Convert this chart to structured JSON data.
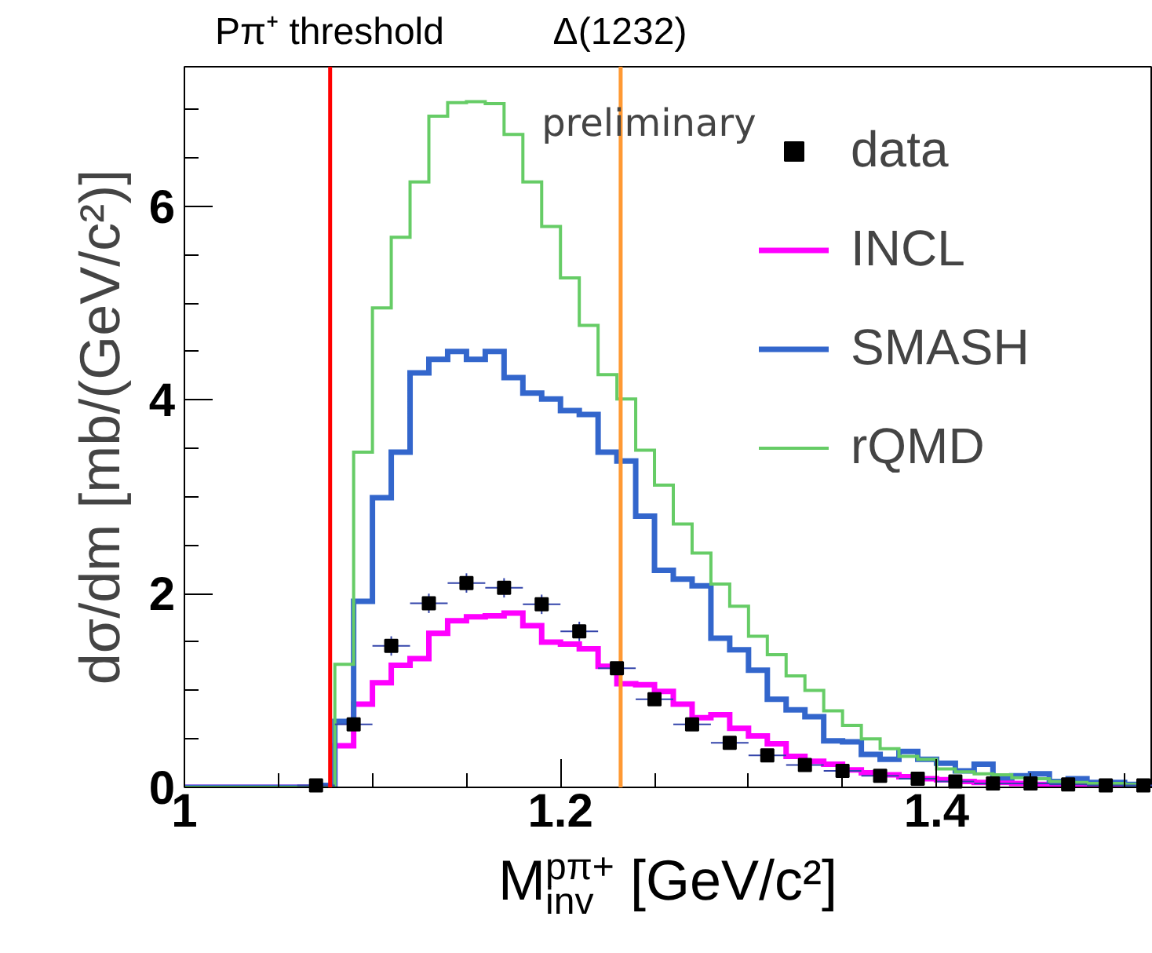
{
  "chart_data": {
    "type": "histogram",
    "xlabel": "M$_{inv}$$^{pπ+}$ [GeV/c²]",
    "ylabel": "dσ/dm [mb/(GeV/c²)]",
    "bins": [
      1.0,
      1.01,
      1.02,
      1.03,
      1.04,
      1.05,
      1.06,
      1.07,
      1.08,
      1.09,
      1.1,
      1.11,
      1.12,
      1.13,
      1.14,
      1.15,
      1.16,
      1.17,
      1.18,
      1.19,
      1.2,
      1.21,
      1.22,
      1.23,
      1.24,
      1.25,
      1.26,
      1.27,
      1.28,
      1.29,
      1.3,
      1.31,
      1.32,
      1.33,
      1.34,
      1.35,
      1.36,
      1.37,
      1.38,
      1.39,
      1.4,
      1.41,
      1.42,
      1.43,
      1.44,
      1.45,
      1.46,
      1.47,
      1.48,
      1.49,
      1.5,
      1.51
    ],
    "series": [
      {
        "name": "data",
        "type": "scatter",
        "color": "#000000",
        "x": [
          1.07,
          1.09,
          1.11,
          1.13,
          1.15,
          1.17,
          1.19,
          1.21,
          1.23,
          1.25,
          1.27,
          1.29,
          1.31,
          1.33,
          1.35,
          1.37,
          1.39,
          1.41,
          1.43,
          1.45,
          1.47,
          1.49,
          1.51
        ],
        "values": [
          0.02,
          0.65,
          1.46,
          1.9,
          2.11,
          2.06,
          1.89,
          1.61,
          1.23,
          0.91,
          0.65,
          0.46,
          0.33,
          0.23,
          0.17,
          0.12,
          0.09,
          0.06,
          0.04,
          0.04,
          0.03,
          0.02,
          0.02
        ],
        "errors": [
          null,
          null,
          0.1,
          0.1,
          0.1,
          0.1,
          0.1,
          0.1,
          null,
          null,
          null,
          null,
          null,
          null,
          null,
          null,
          null,
          null,
          null,
          null,
          null,
          null,
          null
        ],
        "xerrors": [
          0.01,
          0.01,
          0.01,
          0.01,
          0.01,
          0.01,
          0.01,
          0.01,
          0.01,
          0.01,
          0.01,
          0.01,
          0.01,
          0.01,
          0.01,
          0.01,
          0.01,
          0.01,
          0.01,
          0.01,
          0.01,
          0.01,
          0.01
        ],
        "marker": "square"
      },
      {
        "name": "INCL",
        "color": "#ff00ff",
        "values": [
          0,
          0,
          0,
          0,
          0,
          0,
          0,
          0,
          0.43,
          0.86,
          1.08,
          1.26,
          1.33,
          1.59,
          1.72,
          1.76,
          1.77,
          1.8,
          1.67,
          1.5,
          1.48,
          1.43,
          1.25,
          1.07,
          1.06,
          0.99,
          0.86,
          0.72,
          0.75,
          0.61,
          0.53,
          0.45,
          0.32,
          0.27,
          0.24,
          0.18,
          0.15,
          0.13,
          0.11,
          0.09,
          0.08,
          0.06,
          0.05,
          0.05,
          0.04,
          0.03,
          0.03,
          0.03,
          0.02,
          0.02,
          0.02
        ]
      },
      {
        "name": "SMASH",
        "color": "#3366cc",
        "values": [
          0,
          0,
          0,
          0,
          0,
          0,
          0,
          0.02,
          0.68,
          1.92,
          2.99,
          3.46,
          4.28,
          4.42,
          4.5,
          4.42,
          4.5,
          4.23,
          4.07,
          4.01,
          3.89,
          3.85,
          3.46,
          3.37,
          2.8,
          2.24,
          2.15,
          2.08,
          1.54,
          1.42,
          1.21,
          0.91,
          0.8,
          0.73,
          0.48,
          0.47,
          0.34,
          0.29,
          0.37,
          0.29,
          0.25,
          0.17,
          0.24,
          0.1,
          0.12,
          0.14,
          0.06,
          0.09,
          0.05,
          0.05,
          0.03
        ]
      },
      {
        "name": "rQMD",
        "color": "#66cc66",
        "values": [
          0,
          0,
          0,
          0,
          0,
          0,
          0,
          0,
          1.27,
          3.46,
          4.95,
          5.68,
          6.25,
          6.93,
          7.07,
          7.08,
          7.06,
          6.74,
          6.25,
          5.79,
          5.26,
          4.77,
          4.26,
          4.01,
          3.48,
          3.12,
          2.72,
          2.42,
          2.1,
          1.87,
          1.56,
          1.37,
          1.15,
          1.0,
          0.79,
          0.64,
          0.5,
          0.4,
          0.32,
          0.29,
          0.19,
          0.16,
          0.14,
          0.13,
          0.1,
          0.09,
          0.06,
          0.05,
          0.04,
          0.04,
          0.03
        ]
      }
    ],
    "ref_lines": [
      {
        "axis": "x",
        "value": 1.0775,
        "label": "Pπ⁺ threshold",
        "color": "#ff0000"
      },
      {
        "axis": "x",
        "value": 1.232,
        "label": "Δ(1232)",
        "color": "#ff9933"
      }
    ],
    "annotations": [
      "preliminary"
    ],
    "xlim": [
      1.0,
      1.515
    ],
    "ylim": [
      0,
      7.44
    ],
    "xticks": [
      1,
      1.2,
      1.4
    ],
    "yticks": [
      0,
      2,
      4,
      6
    ],
    "grid": false,
    "legend": "top right"
  }
}
